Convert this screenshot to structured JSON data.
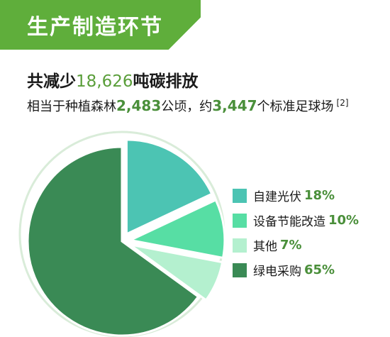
{
  "banner": {
    "title": "生产制造环节"
  },
  "headline": {
    "prefix": "共减少",
    "value": "18,626",
    "suffix": "吨碳排放"
  },
  "subline": {
    "prefix": "相当于种植森林",
    "forest_value": "2,483",
    "forest_unit": "公顷，约",
    "field_value": "3,447",
    "field_unit": "个标准足球场",
    "footnote": "[2]"
  },
  "colors": {
    "banner": "#5fae3b",
    "self_pv": "#4cc4b3",
    "equipment": "#57dea4",
    "other": "#b4f0cf",
    "green_power": "#3a8a55",
    "accent_text": "#4a8f3a"
  },
  "chart_data": {
    "type": "pie",
    "title": "",
    "slices": [
      {
        "label": "自建光伏",
        "value": 18,
        "display": "18%",
        "color": "#4cc4b3"
      },
      {
        "label": "设备节能改造",
        "value": 10,
        "display": "10%",
        "color": "#57dea4"
      },
      {
        "label": "其他",
        "value": 7,
        "display": "7%",
        "color": "#b4f0cf"
      },
      {
        "label": "绿电采购",
        "value": 65,
        "display": "65%",
        "color": "#3a8a55"
      }
    ],
    "legend_position": "right"
  }
}
